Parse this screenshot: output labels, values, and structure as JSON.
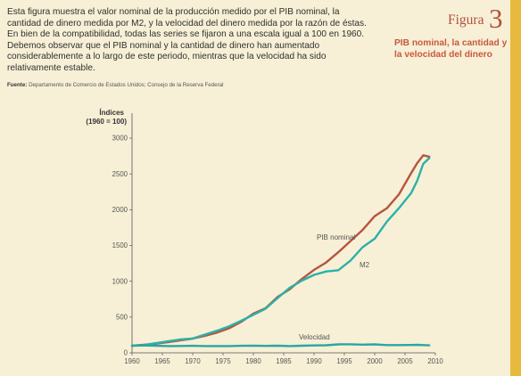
{
  "figure": {
    "label": "Figura",
    "number": "3",
    "title": "PIB nominal, la cantidad y la velocidad del dinero"
  },
  "description": "Esta figura muestra el valor nominal de la producción medido por el PIB nominal, la cantidad de dinero medida por M2, y la velocidad del dinero medida por la razón de éstas. En bien de la compatibilidad, todas las series se fijaron a una escala igual a 100 en 1960. Debemos observar que el PIB nominal y la cantidad de dinero han aumentado considerablemente a lo largo de este periodo, mientras que la velocidad ha sido relativamente estable.",
  "source": {
    "label": "Fuente:",
    "text": "Departamento de Comercio de Estados Unidos; Consejo de la Reserva Federal"
  },
  "colors": {
    "background": "#f7f0d6",
    "accent": "#c9583d",
    "stripe": "#e7ba3d",
    "pib": "#b5553f",
    "m2": "#2ab2aa",
    "velocidad": "#2aa6a3"
  },
  "chart_data": {
    "type": "line",
    "ylabel_line1": "Índices",
    "ylabel_line2": "(1960 = 100)",
    "xlabel": "",
    "ylim": [
      0,
      3000
    ],
    "xlim": [
      1960,
      2010
    ],
    "yticks": [
      0,
      500,
      1000,
      1500,
      2000,
      2500,
      3000
    ],
    "xticks": [
      1960,
      1965,
      1970,
      1975,
      1980,
      1985,
      1990,
      1995,
      2000,
      2005,
      2010
    ],
    "grid": false,
    "series": [
      {
        "name": "PIB nominal",
        "color": "#b5553f",
        "x": [
          1960,
          1962,
          1964,
          1966,
          1968,
          1970,
          1972,
          1974,
          1976,
          1978,
          1980,
          1982,
          1984,
          1986,
          1988,
          1990,
          1992,
          1994,
          1996,
          1998,
          2000,
          2002,
          2004,
          2006,
          2007,
          2008,
          2009
        ],
        "values": [
          100,
          113,
          128,
          150,
          175,
          199,
          237,
          283,
          343,
          433,
          548,
          623,
          780,
          889,
          1032,
          1159,
          1262,
          1405,
          1561,
          1716,
          1910,
          2019,
          2215,
          2510,
          2650,
          2760,
          2740
        ]
      },
      {
        "name": "M2",
        "color": "#2ab2aa",
        "x": [
          1960,
          1962,
          1964,
          1966,
          1968,
          1970,
          1972,
          1974,
          1976,
          1978,
          1980,
          1982,
          1984,
          1986,
          1988,
          1990,
          1992,
          1994,
          1996,
          1998,
          2000,
          2002,
          2004,
          2006,
          2007,
          2008,
          2009
        ],
        "values": [
          100,
          110,
          136,
          163,
          188,
          201,
          255,
          309,
          371,
          448,
          532,
          616,
          766,
          910,
          1008,
          1089,
          1137,
          1154,
          1287,
          1475,
          1594,
          1832,
          2021,
          2231,
          2402,
          2640,
          2720
        ]
      },
      {
        "name": "Velocidad",
        "color": "#2aa6a3",
        "x": [
          1960,
          1962,
          1964,
          1966,
          1968,
          1970,
          1972,
          1974,
          1976,
          1978,
          1980,
          1982,
          1984,
          1986,
          1988,
          1990,
          1992,
          1994,
          1996,
          1998,
          2000,
          2002,
          2004,
          2006,
          2007,
          2008,
          2009
        ],
        "values": [
          100,
          103,
          98,
          95,
          96,
          98,
          95,
          94,
          95,
          98,
          100,
          97,
          99,
          95,
          99,
          103,
          106,
          118,
          119,
          115,
          118,
          108,
          108,
          110,
          112,
          108,
          104
        ]
      }
    ]
  }
}
